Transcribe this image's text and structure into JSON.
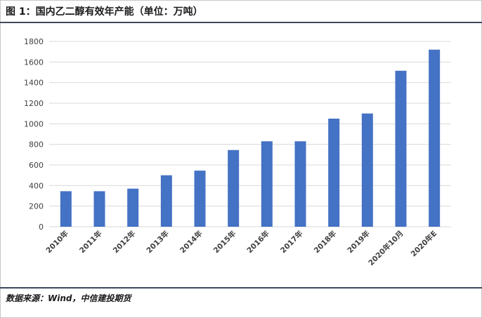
{
  "title": "图 1：国内乙二醇有效年产能（单位：万吨）",
  "source": "数据来源：Wind，中信建投期货",
  "chart_data": {
    "type": "bar",
    "categories": [
      "2010年",
      "2011年",
      "2012年",
      "2013年",
      "2014年",
      "2015年",
      "2016年",
      "2017年",
      "2018年",
      "2019年",
      "2020年10月",
      "2020年E"
    ],
    "values": [
      345,
      345,
      370,
      500,
      545,
      745,
      830,
      830,
      1050,
      1100,
      1515,
      1720
    ],
    "ylim": [
      0,
      1800
    ],
    "yticks": [
      0,
      200,
      400,
      600,
      800,
      1000,
      1200,
      1400,
      1600,
      1800
    ],
    "grid": true,
    "bar_color": "#4472c4",
    "grid_color": "#d9d9d9"
  }
}
